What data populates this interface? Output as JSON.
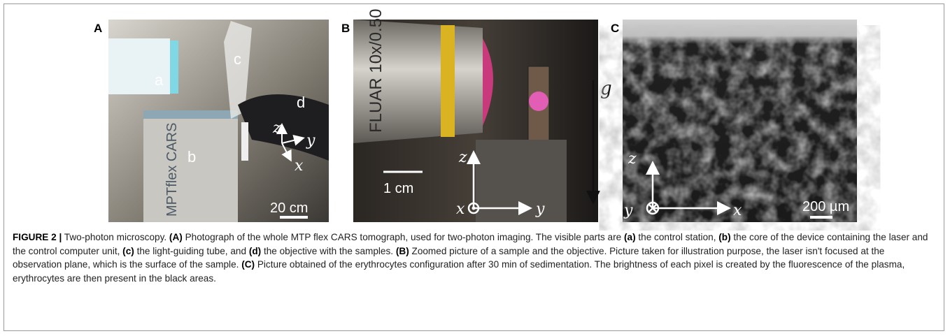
{
  "panels": [
    {
      "letter": "A",
      "labels": [
        "a",
        "b",
        "c",
        "d"
      ],
      "device_text": "MPTflex CARS",
      "scale_bar": "20 cm",
      "axes": [
        "z",
        "y",
        "x"
      ]
    },
    {
      "letter": "B",
      "lens_text": "FLUAR 10x/0.50",
      "scale_bar": "1 cm",
      "axes": [
        "z",
        "x",
        "y"
      ],
      "gravity": "g"
    },
    {
      "letter": "C",
      "scale_bar": "200 µm",
      "axes": [
        "z",
        "y",
        "x"
      ]
    }
  ],
  "caption": {
    "runs": [
      {
        "text": "FIGURE 2 |",
        "bold": true
      },
      {
        "text": " Two-photon microscopy. ",
        "bold": false
      },
      {
        "text": "(A)",
        "bold": true
      },
      {
        "text": " Photograph of the whole MTP flex CARS tomograph, used for two-photon imaging. The visible parts are ",
        "bold": false
      },
      {
        "text": "(a)",
        "bold": true
      },
      {
        "text": " the control station, ",
        "bold": false
      },
      {
        "text": "(b)",
        "bold": true
      },
      {
        "text": " the core of the device containing the laser and the control computer unit, ",
        "bold": false
      },
      {
        "text": "(c)",
        "bold": true
      },
      {
        "text": " the light-guiding tube, and ",
        "bold": false
      },
      {
        "text": "(d)",
        "bold": true
      },
      {
        "text": " the objective with the samples. ",
        "bold": false
      },
      {
        "text": "(B)",
        "bold": true
      },
      {
        "text": " Zoomed picture of a sample and the objective. Picture taken for illustration purpose, the laser isn't focused at the observation plane, which is the surface of the sample. ",
        "bold": false
      },
      {
        "text": "(C)",
        "bold": true
      },
      {
        "text": " Picture obtained of the erythrocytes configuration after 30 min of sedimentation. The brightness of each pixel is created by the fluorescence of the plasma, erythrocytes are then present in the black areas.",
        "bold": false
      }
    ]
  }
}
